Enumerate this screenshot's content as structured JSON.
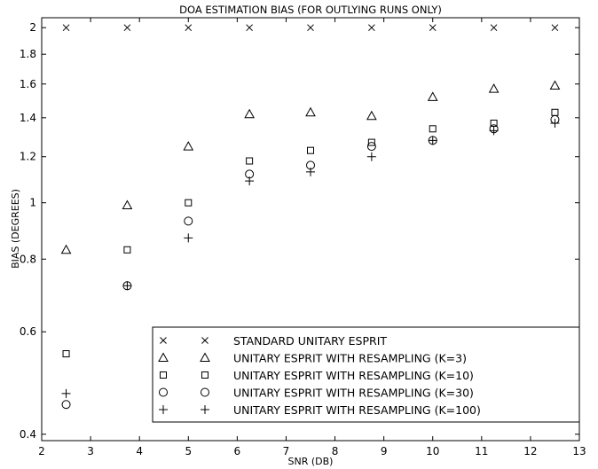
{
  "chart_data": {
    "type": "scatter",
    "title": "DOA ESTIMATION BIAS (FOR OUTLYING RUNS ONLY)",
    "xlabel": "SNR (DB)",
    "ylabel": "BIAS (DEGREES)",
    "xlim": [
      2,
      13
    ],
    "ylim": [
      0.39,
      2.08
    ],
    "yscale": "log",
    "grid": false,
    "legend_position": "bottom-right",
    "xticks": [
      "2",
      "3",
      "4",
      "5",
      "6",
      "7",
      "8",
      "9",
      "10",
      "11",
      "12",
      "13"
    ],
    "yticks": [
      "0.4",
      "0.6",
      "0.8",
      "1",
      "1.2",
      "1.4",
      "1.6",
      "1.8",
      "2"
    ],
    "series": [
      {
        "name": "STANDARD UNITARY ESPRIT",
        "marker": "x",
        "x": [
          2.5,
          3.75,
          5,
          6.25,
          7.5,
          8.75,
          10,
          11.25,
          12.5
        ],
        "y": [
          2.0,
          2.0,
          2.0,
          2.0,
          2.0,
          2.0,
          2.0,
          2.0,
          2.0
        ]
      },
      {
        "name": "UNITARY ESPRIT WITH RESAMPLING (K=3)",
        "marker": "triangle",
        "x": [
          2.5,
          3.75,
          5,
          6.25,
          7.5,
          8.75,
          10,
          11.25,
          12.5
        ],
        "y": [
          0.83,
          0.99,
          1.25,
          1.42,
          1.43,
          1.41,
          1.52,
          1.57,
          1.59
        ]
      },
      {
        "name": "UNITARY ESPRIT WITH RESAMPLING (K=10)",
        "marker": "square",
        "x": [
          2.5,
          3.75,
          5,
          6.25,
          7.5,
          8.75,
          10,
          11.25,
          12.5
        ],
        "y": [
          0.55,
          0.83,
          1.0,
          1.18,
          1.23,
          1.27,
          1.34,
          1.37,
          1.43
        ]
      },
      {
        "name": "UNITARY ESPRIT WITH RESAMPLING (K=30)",
        "marker": "circle",
        "x": [
          2.5,
          3.75,
          5,
          6.25,
          7.5,
          8.75,
          10,
          11.25,
          12.5
        ],
        "y": [
          0.45,
          0.72,
          0.93,
          1.12,
          1.16,
          1.25,
          1.28,
          1.34,
          1.39
        ]
      },
      {
        "name": "UNITARY ESPRIT WITH RESAMPLING (K=100)",
        "marker": "plus",
        "x": [
          2.5,
          3.75,
          5,
          6.25,
          7.5,
          8.75,
          10,
          11.25,
          12.5
        ],
        "y": [
          0.47,
          0.72,
          0.87,
          1.09,
          1.13,
          1.2,
          1.28,
          1.33,
          1.37
        ]
      }
    ]
  }
}
